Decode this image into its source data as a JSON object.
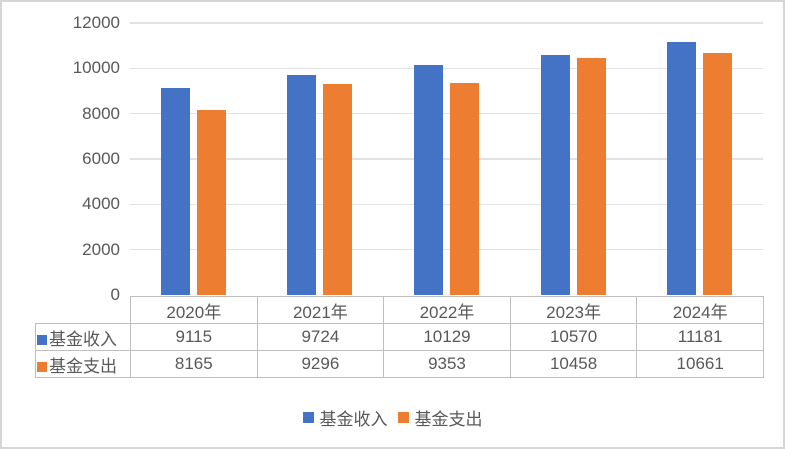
{
  "chart_data": {
    "type": "bar",
    "title": "",
    "xlabel": "",
    "ylabel": "",
    "categories": [
      "2020年",
      "2021年",
      "2022年",
      "2023年",
      "2024年"
    ],
    "series": [
      {
        "name": "基金收入",
        "color": "#4472C4",
        "values": [
          9115,
          9724,
          10129,
          10570,
          11181
        ]
      },
      {
        "name": "基金支出",
        "color": "#ED7D31",
        "values": [
          8165,
          9296,
          9353,
          10458,
          10661
        ]
      }
    ],
    "ylim": [
      0,
      12000
    ],
    "yticks": [
      0,
      2000,
      4000,
      6000,
      8000,
      10000,
      12000
    ],
    "grid": true,
    "legend_position": "bottom",
    "data_table_shown": true
  },
  "legend": {
    "items": [
      {
        "label": "基金收入",
        "color": "#4472C4"
      },
      {
        "label": "基金支出",
        "color": "#ED7D31"
      }
    ]
  },
  "colors": {
    "series_income": "#4472C4",
    "series_expense": "#ED7D31",
    "gridline": "#e2e2e2",
    "table_border": "#bfbfbf",
    "text": "#595959",
    "frame": "#d6d6d6",
    "background": "#ffffff"
  }
}
